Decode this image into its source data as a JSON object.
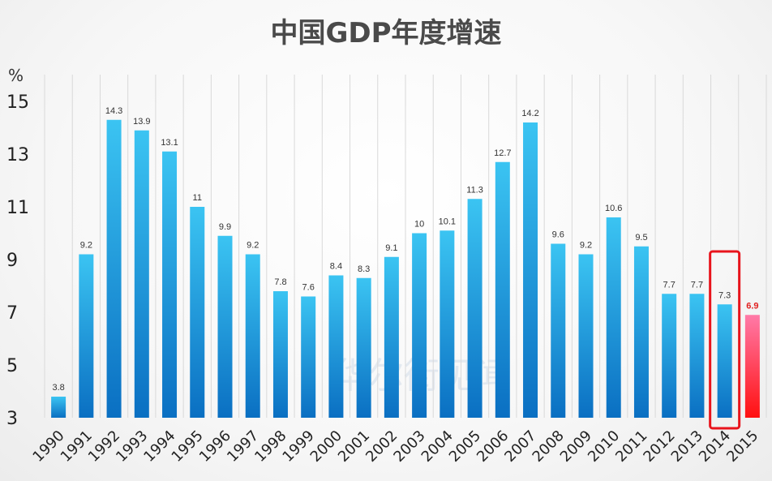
{
  "chart_data": {
    "type": "bar",
    "title": "中国GDP年度增速",
    "unit_label": "%",
    "categories": [
      "1990",
      "1991",
      "1992",
      "1993",
      "1994",
      "1995",
      "1996",
      "1997",
      "1998",
      "1999",
      "2000",
      "2001",
      "2002",
      "2003",
      "2004",
      "2005",
      "2006",
      "2007",
      "2008",
      "2009",
      "2010",
      "2011",
      "2012",
      "2013",
      "2014",
      "2015"
    ],
    "values": [
      3.8,
      9.2,
      14.3,
      13.9,
      13.1,
      11,
      9.9,
      9.2,
      7.8,
      7.6,
      8.4,
      8.3,
      9.1,
      10,
      10.1,
      11.3,
      12.7,
      14.2,
      9.6,
      9.2,
      10.6,
      9.5,
      7.7,
      7.7,
      7.3,
      6.9
    ],
    "value_labels": [
      "3.8",
      "9.2",
      "14.3",
      "13.9",
      "13.1",
      "11",
      "9.9",
      "9.2",
      "7.8",
      "7.6",
      "8.4",
      "8.3",
      "9.1",
      "10",
      "10.1",
      "11.3",
      "12.7",
      "14.2",
      "9.6",
      "9.2",
      "10.6",
      "9.5",
      "7.7",
      "7.7",
      "7.3",
      "6.9"
    ],
    "ylim": [
      3,
      16
    ],
    "yticks": [
      3,
      5,
      7,
      9,
      11,
      13,
      15
    ],
    "xlabel": "",
    "ylabel": "",
    "grid": "vertical",
    "highlight_category": "2015",
    "boxed_category": "2014",
    "colors": {
      "bar_top": "#3bc4f2",
      "bar_bottom": "#0a6fc2",
      "highlight_top": "#ff7aa8",
      "highlight_bottom": "#ff1010",
      "box": "#e8141c",
      "grid": "#d9d9d9"
    },
    "watermark": "华尔街见闻"
  }
}
